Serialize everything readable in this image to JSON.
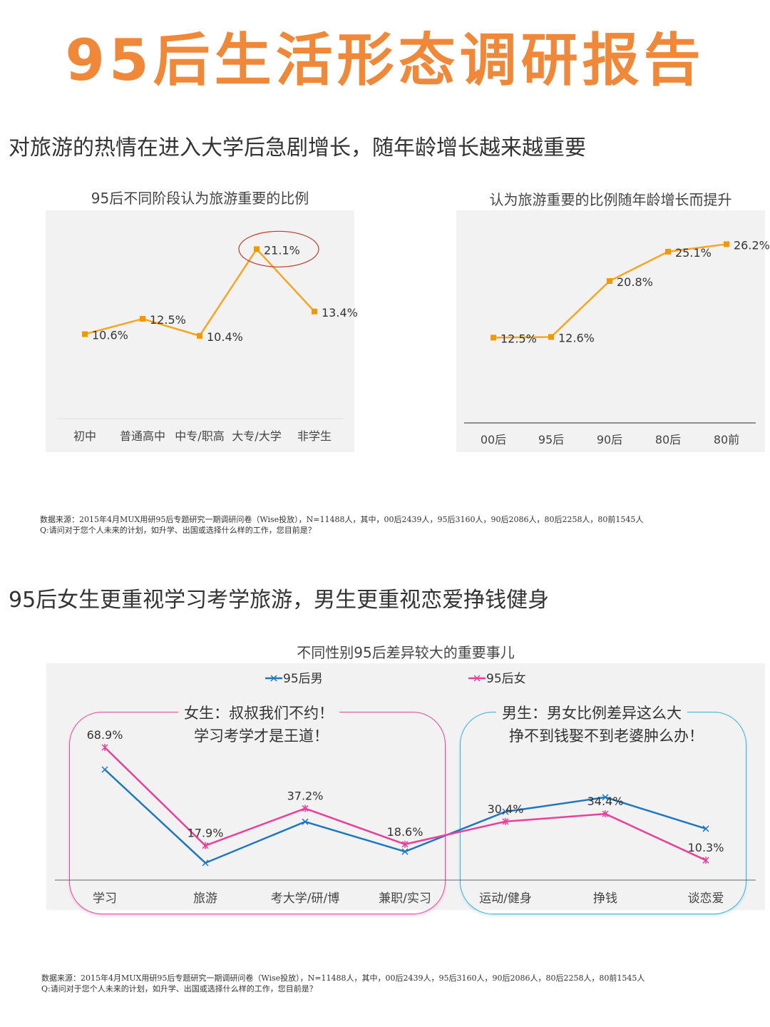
{
  "title": "95后生活形态调研报告",
  "section1": {
    "heading": "对旅游的热情在进入大学后急剧增长，随年龄增长越来越重要",
    "source_line1": "数据来源：2015年4月MUX用研95后专题研究一期调研问卷（Wise投放），N=11488人，其中，00后2439人，95后3160人，90后2086人，80后2258人，80前1545人",
    "source_line2": "Q:请问对于您个人未来的计划，如升学、出国或选择什么样的工作，您目前是？"
  },
  "section2": {
    "heading": "95后女生更重视学习考学旅游，男生更重视恋爱挣钱健身",
    "callout_female_1": "女生：叔叔我们不约！",
    "callout_female_2": "学习考学才是王道！",
    "callout_male_1": "男生：男女比例差异这么大",
    "callout_male_2": "挣不到钱娶不到老婆肿么办！",
    "source_line1": "数据来源：2015年4月MUX用研95后专题研究一期调研问卷（Wise投放），N=11488人，其中，00后2439人，95后3160人，90后2086人，80后2258人，80前1545人",
    "source_line2": "Q:请问对于您个人未来的计划，如升学、出国或选择什么样的工作，您目前是？"
  },
  "colors": {
    "title": "#F0883A",
    "orange_line": "#F5A623",
    "orange_marker": "#F39800",
    "highlight_circle": "#C0392B",
    "male": "#1F77BF",
    "female": "#E8419A",
    "panel": "#F2F2F2"
  },
  "chart_data": [
    {
      "type": "line",
      "title": "95后不同阶段认为旅游重要的比例",
      "categories": [
        "初中",
        "普通高中",
        "中专/职高",
        "大专/大学",
        "非学生"
      ],
      "values": [
        10.6,
        12.5,
        10.4,
        21.1,
        13.4
      ],
      "data_labels": [
        "10.6%",
        "12.5%",
        "10.4%",
        "21.1%",
        "13.4%"
      ],
      "highlighted_category": "大专/大学",
      "ylim": [
        0,
        25
      ],
      "grid": false,
      "unit": "%"
    },
    {
      "type": "line",
      "title": "认为旅游重要的比例随年龄增长而提升",
      "categories": [
        "00后",
        "95后",
        "90后",
        "80后",
        "80前"
      ],
      "values": [
        12.5,
        12.6,
        20.8,
        25.1,
        26.2
      ],
      "data_labels": [
        "12.5%",
        "12.6%",
        "20.8%",
        "25.1%",
        "26.2%"
      ],
      "ylim": [
        0,
        30
      ],
      "grid": false,
      "unit": "%"
    },
    {
      "type": "line",
      "title": "不同性别95后差异较大的重要事儿",
      "categories": [
        "学习",
        "旅游",
        "考大学/研/博",
        "兼职/实习",
        "运动/健身",
        "挣钱",
        "谈恋爱"
      ],
      "series": [
        {
          "name": "95后男",
          "values": [
            57.4,
            8.9,
            30.3,
            14.8,
            35.5,
            43.0,
            26.7
          ]
        },
        {
          "name": "95后女",
          "values": [
            68.9,
            17.9,
            37.2,
            18.6,
            30.4,
            34.4,
            10.3
          ]
        }
      ],
      "data_labels": [
        "68.9%",
        "17.9%",
        "37.2%",
        "18.6%",
        "30.4%",
        "34.4%",
        "10.3%"
      ],
      "ylim": [
        0,
        80
      ],
      "grid": false,
      "legend": "top",
      "unit": "%"
    }
  ]
}
